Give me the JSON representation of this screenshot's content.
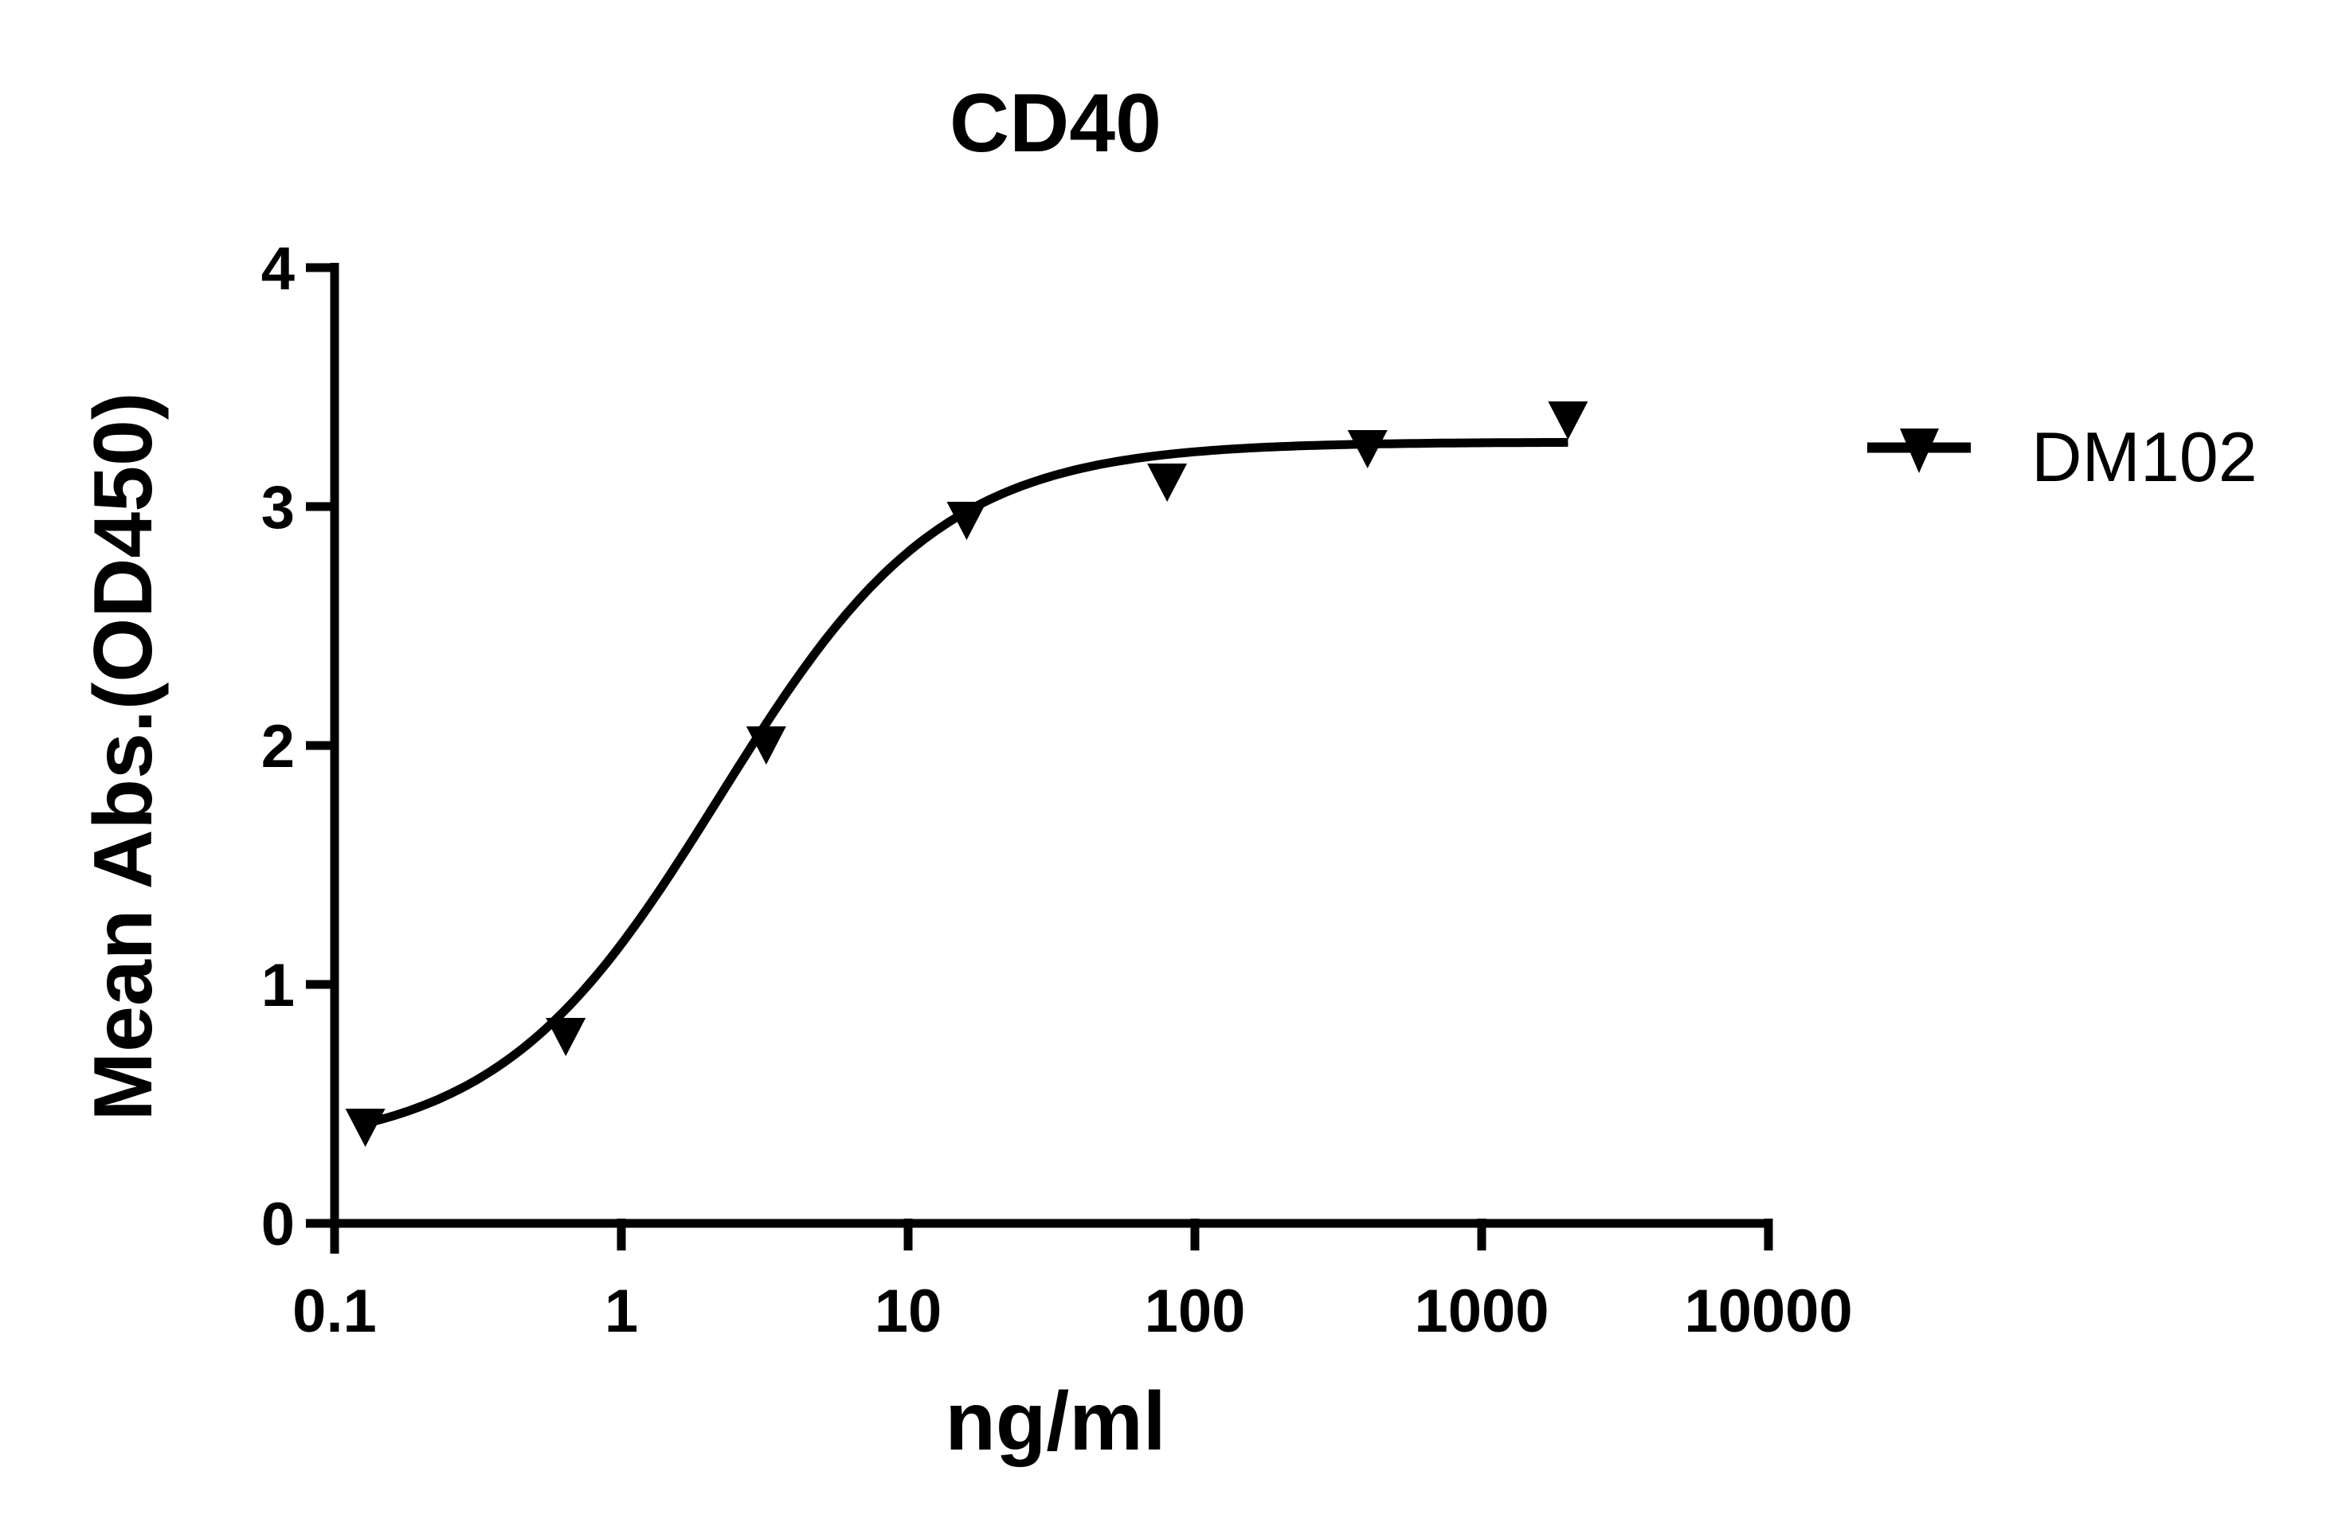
{
  "chart_data": {
    "type": "scatter",
    "title": "CD40",
    "xlabel": "ng/ml",
    "ylabel": "Mean Abs.(OD450)",
    "x_scale": "log10",
    "xlim": [
      0.1,
      10000
    ],
    "ylim": [
      0,
      4
    ],
    "x_ticks": [
      "0.1",
      "1",
      "10",
      "100",
      "1000",
      "10000"
    ],
    "y_ticks": [
      "0",
      "1",
      "2",
      "3",
      "4"
    ],
    "grid": false,
    "legend_position": "right",
    "fit": "4-parameter logistic (sigmoidal) curve",
    "series": [
      {
        "name": "DM102",
        "marker": "down-triangle",
        "color": "#000000",
        "x": [
          0.128,
          0.64,
          3.2,
          16,
          80,
          400,
          2000
        ],
        "values": [
          0.4,
          0.78,
          2.0,
          2.94,
          3.1,
          3.24,
          3.36
        ]
      }
    ]
  }
}
